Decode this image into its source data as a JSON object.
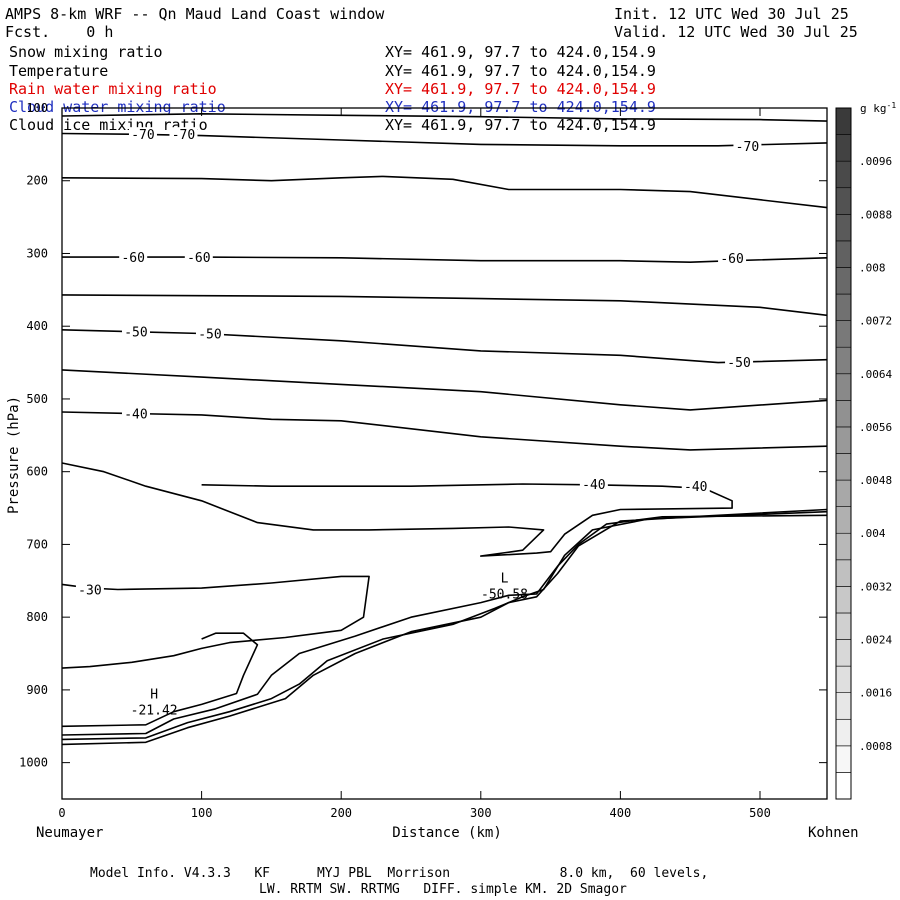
{
  "header": {
    "title": "AMPS 8-km WRF -- Qn Maud Land Coast window",
    "forecast": "Fcst.    0 h",
    "init": "Init. 12 UTC Wed 30 Jul 25",
    "valid": "Valid. 12 UTC Wed 30 Jul 25"
  },
  "fields": [
    {
      "name": "Snow mixing ratio",
      "xy": "XY= 461.9, 97.7 to 424.0,154.9",
      "color": "#000000"
    },
    {
      "name": "Temperature",
      "xy": "XY= 461.9, 97.7 to 424.0,154.9",
      "color": "#000000"
    },
    {
      "name": "Rain water mixing ratio",
      "xy": "XY= 461.9, 97.7 to 424.0,154.9",
      "color": "#e00000"
    },
    {
      "name": "Cloud water mixing ratio",
      "xy": "XY= 461.9, 97.7 to 424.0,154.9",
      "color": "#2030c0"
    },
    {
      "name": "Cloud ice mixing ratio",
      "xy": "XY= 461.9, 97.7 to 424.0,154.9",
      "color": "#000000"
    }
  ],
  "footer": {
    "line1": "Model Info. V4.3.3   KF      MYJ PBL  Morrison              8.0 km,  60 levels,",
    "line2": "LW. RRTM SW. RRTMG   DIFF. simple KM. 2D Smagor"
  },
  "chart_data": {
    "type": "line",
    "xlabel": "Distance (km)",
    "ylabel": "Pressure (hPa)",
    "xlim": [
      0,
      548
    ],
    "ylim": [
      1050,
      100
    ],
    "x_ticks": [
      0,
      100,
      200,
      300,
      400,
      500
    ],
    "y_ticks": [
      100,
      200,
      300,
      400,
      500,
      600,
      700,
      800,
      900,
      1000
    ],
    "x_start_label": "Neumayer",
    "x_end_label": "Kohnen",
    "colorbar": {
      "unit": "g kg",
      "unit_sup": "-1",
      "tick_labels": [
        ".0096",
        ".0088",
        ".008",
        ".0072",
        ".0064",
        ".0056",
        ".0048",
        ".004",
        ".0032",
        ".0024",
        ".0016",
        ".0008"
      ],
      "range": [
        0,
        0.0104
      ],
      "step": 0.0004
    },
    "contour_labels": [
      {
        "text": "-70",
        "x": 58,
        "p": 136
      },
      {
        "text": "-70",
        "x": 87,
        "p": 136
      },
      {
        "text": "-70",
        "x": 491,
        "p": 152
      },
      {
        "text": "-60",
        "x": 51,
        "p": 305
      },
      {
        "text": "-60",
        "x": 98,
        "p": 305
      },
      {
        "text": "-60",
        "x": 480,
        "p": 306
      },
      {
        "text": "-50",
        "x": 53,
        "p": 407
      },
      {
        "text": "-50",
        "x": 106,
        "p": 410
      },
      {
        "text": "-50",
        "x": 485,
        "p": 449
      },
      {
        "text": "-40",
        "x": 53,
        "p": 520
      },
      {
        "text": "-40",
        "x": 381,
        "p": 617
      },
      {
        "text": "-40",
        "x": 454,
        "p": 620
      },
      {
        "text": "-30",
        "x": 20,
        "p": 762
      }
    ],
    "extrema": [
      {
        "label": "H",
        "value": "-21.42",
        "x": 66,
        "p": 928
      },
      {
        "label": "L",
        "value": "-50.58",
        "x": 317,
        "p": 769
      }
    ],
    "isotherms": [
      {
        "level": -70,
        "points": [
          [
            0,
            111
          ],
          [
            100,
            108
          ],
          [
            200,
            110
          ],
          [
            300,
            112
          ],
          [
            400,
            115
          ],
          [
            500,
            116
          ],
          [
            548,
            118
          ]
        ]
      },
      {
        "level": -70,
        "points": [
          [
            0,
            135
          ],
          [
            50,
            136
          ],
          [
            100,
            138
          ],
          [
            200,
            144
          ],
          [
            300,
            150
          ],
          [
            400,
            152
          ],
          [
            470,
            152
          ],
          [
            548,
            148
          ]
        ]
      },
      {
        "level": null,
        "points": [
          [
            0,
            196
          ],
          [
            100,
            197
          ],
          [
            150,
            200
          ],
          [
            200,
            196
          ],
          [
            230,
            194
          ],
          [
            280,
            198
          ],
          [
            320,
            212
          ],
          [
            400,
            212
          ],
          [
            450,
            215
          ],
          [
            548,
            237
          ]
        ]
      },
      {
        "level": -60,
        "points": [
          [
            0,
            305
          ],
          [
            100,
            305
          ],
          [
            200,
            306
          ],
          [
            300,
            310
          ],
          [
            400,
            310
          ],
          [
            450,
            312
          ],
          [
            480,
            310
          ],
          [
            548,
            306
          ]
        ]
      },
      {
        "level": null,
        "points": [
          [
            0,
            357
          ],
          [
            100,
            358
          ],
          [
            200,
            359
          ],
          [
            300,
            362
          ],
          [
            400,
            365
          ],
          [
            500,
            374
          ],
          [
            548,
            385
          ]
        ]
      },
      {
        "level": -50,
        "points": [
          [
            0,
            405
          ],
          [
            100,
            410
          ],
          [
            200,
            420
          ],
          [
            300,
            434
          ],
          [
            400,
            440
          ],
          [
            470,
            450
          ],
          [
            548,
            446
          ]
        ]
      },
      {
        "level": null,
        "points": [
          [
            0,
            460
          ],
          [
            100,
            470
          ],
          [
            200,
            480
          ],
          [
            300,
            490
          ],
          [
            400,
            508
          ],
          [
            450,
            515
          ],
          [
            548,
            502
          ]
        ]
      },
      {
        "level": -40,
        "points": [
          [
            0,
            518
          ],
          [
            50,
            520
          ],
          [
            100,
            522
          ],
          [
            150,
            528
          ],
          [
            200,
            530
          ],
          [
            300,
            552
          ],
          [
            400,
            565
          ],
          [
            450,
            570
          ],
          [
            548,
            565
          ]
        ]
      },
      {
        "level": -40,
        "points": [
          [
            0,
            588
          ],
          [
            30,
            600
          ],
          [
            60,
            620
          ],
          [
            100,
            640
          ],
          [
            140,
            670
          ],
          [
            180,
            680
          ],
          [
            220,
            680
          ],
          [
            280,
            678
          ],
          [
            320,
            676
          ],
          [
            345,
            680
          ],
          [
            330,
            708
          ],
          [
            300,
            716
          ],
          [
            340,
            712
          ],
          [
            350,
            710
          ],
          [
            360,
            686
          ],
          [
            380,
            660
          ],
          [
            400,
            652
          ],
          [
            480,
            650
          ],
          [
            480,
            640
          ],
          [
            460,
            623
          ],
          [
            430,
            620
          ],
          [
            380,
            618
          ],
          [
            330,
            617
          ],
          [
            250,
            620
          ],
          [
            150,
            620
          ],
          [
            100,
            618
          ]
        ]
      },
      {
        "level": -30,
        "points": [
          [
            0,
            755
          ],
          [
            20,
            760
          ],
          [
            40,
            762
          ],
          [
            100,
            760
          ],
          [
            150,
            753
          ],
          [
            200,
            744
          ],
          [
            220,
            744
          ],
          [
            216,
            800
          ],
          [
            200,
            818
          ],
          [
            160,
            828
          ],
          [
            120,
            835
          ],
          [
            100,
            843
          ],
          [
            80,
            853
          ],
          [
            50,
            862
          ],
          [
            20,
            868
          ],
          [
            0,
            870
          ]
        ]
      },
      {
        "level": null,
        "points": [
          [
            0,
            950
          ],
          [
            60,
            948
          ],
          [
            80,
            930
          ],
          [
            100,
            920
          ],
          [
            125,
            905
          ],
          [
            130,
            880
          ],
          [
            140,
            838
          ],
          [
            130,
            822
          ],
          [
            110,
            822
          ],
          [
            100,
            830
          ]
        ]
      },
      {
        "level": null,
        "points": [
          [
            0,
            962
          ],
          [
            60,
            960
          ],
          [
            80,
            940
          ],
          [
            110,
            926
          ],
          [
            140,
            906
          ],
          [
            150,
            880
          ],
          [
            170,
            850
          ],
          [
            210,
            826
          ],
          [
            250,
            800
          ],
          [
            300,
            780
          ],
          [
            320,
            770
          ],
          [
            340,
            768
          ],
          [
            355,
            730
          ],
          [
            370,
            700
          ],
          [
            390,
            672
          ],
          [
            430,
            662
          ],
          [
            548,
            660
          ]
        ]
      },
      {
        "level": null,
        "points": [
          [
            0,
            968
          ],
          [
            60,
            966
          ],
          [
            90,
            945
          ],
          [
            120,
            930
          ],
          [
            150,
            912
          ],
          [
            170,
            892
          ],
          [
            190,
            860
          ],
          [
            230,
            830
          ],
          [
            280,
            810
          ],
          [
            310,
            788
          ],
          [
            330,
            772
          ],
          [
            345,
            762
          ],
          [
            360,
            715
          ],
          [
            380,
            680
          ],
          [
            420,
            665
          ],
          [
            548,
            655
          ]
        ]
      },
      {
        "level": null,
        "points": [
          [
            0,
            975
          ],
          [
            60,
            972
          ],
          [
            90,
            952
          ],
          [
            120,
            936
          ],
          [
            160,
            912
          ],
          [
            180,
            880
          ],
          [
            210,
            850
          ],
          [
            250,
            820
          ],
          [
            300,
            800
          ],
          [
            320,
            780
          ],
          [
            340,
            772
          ],
          [
            355,
            740
          ],
          [
            370,
            702
          ],
          [
            400,
            668
          ],
          [
            450,
            662
          ],
          [
            548,
            652
          ]
        ]
      }
    ]
  }
}
